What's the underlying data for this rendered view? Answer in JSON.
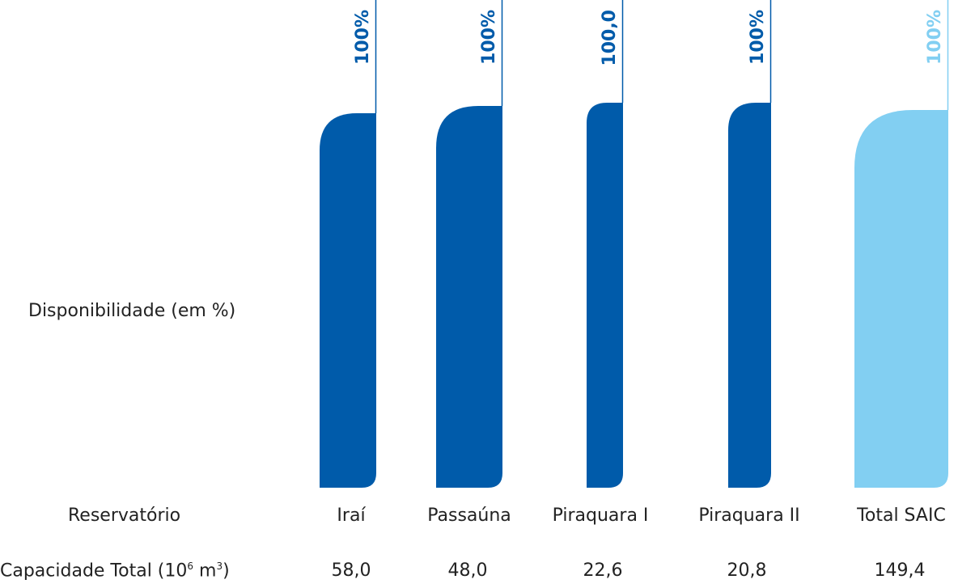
{
  "labels": {
    "availability": "Disponibilidade (em %)",
    "reservoir": "Reservatório",
    "capacity_prefix": "Capacidade Total (10",
    "capacity_exp1": "6",
    "capacity_mid": " m",
    "capacity_exp2": "3",
    "capacity_suffix": ")"
  },
  "colors": {
    "bar": "#005BAA",
    "total": "#82CFF2"
  },
  "chart_data": {
    "type": "bar",
    "categories": [
      "Iraí",
      "Passaúna",
      "Piraquara I",
      "Piraquara II",
      "Total SAIC"
    ],
    "series": [
      {
        "values": [
          100,
          100,
          100,
          100,
          100
        ]
      }
    ],
    "data_labels": [
      "100%",
      "100%",
      "100,0",
      "100%",
      "100%"
    ],
    "capacity": [
      "58,0",
      "48,0",
      "22,6",
      "20,8",
      "149,4"
    ],
    "ylim": [
      0,
      100
    ]
  }
}
